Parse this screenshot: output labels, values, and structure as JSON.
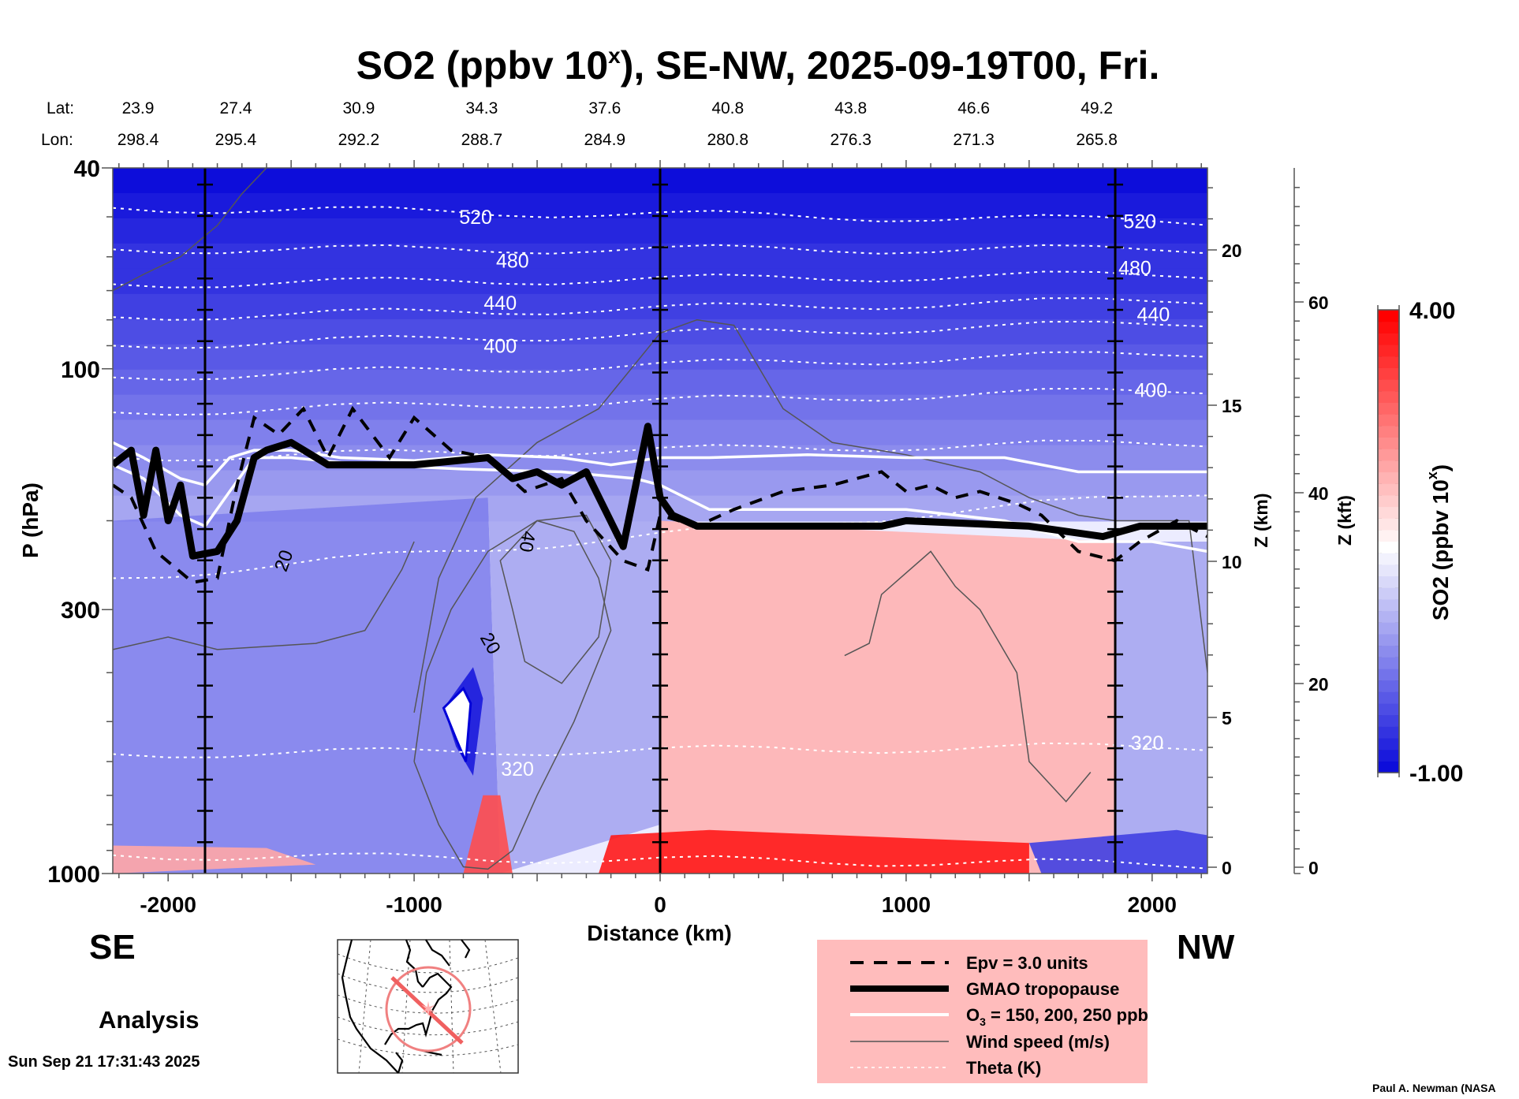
{
  "chart_data": {
    "type": "heatmap",
    "title": "SO2 (ppbv 10",
    "title_sup": "x",
    "title_rest": "), SE-NW, 2025-09-19T00, Fri.",
    "xlabel": "Distance (km)",
    "ylabel": "P (hPa)",
    "ylabel_right_km": "Z (km)",
    "ylabel_right_kft": "Z (kft)",
    "xlim": [
      -2225,
      2225
    ],
    "ylim": [
      1000,
      40
    ],
    "yscale": "log",
    "x_ticks": [
      -2000,
      -1000,
      0,
      1000,
      2000
    ],
    "x_tick_labels": [
      "-2000",
      "-1000",
      "0",
      "1000",
      "2000"
    ],
    "y_ticks": [
      40,
      100,
      300,
      1000
    ],
    "y_tick_labels": [
      "40",
      "100",
      "300",
      "1000"
    ],
    "z_km_ticks": [
      0,
      5,
      10,
      15,
      20
    ],
    "z_km_labels": [
      "0",
      "5",
      "10",
      "15",
      "20"
    ],
    "z_kft_ticks": [
      0,
      20,
      40,
      60
    ],
    "z_kft_labels": [
      "0",
      "20",
      "40",
      "60"
    ],
    "vertical_markers_km": [
      -1850,
      0,
      1850
    ],
    "lat_label": "Lat:",
    "lon_label": "Lon:",
    "position_ticks_km": [
      -2225,
      -1725,
      -1225,
      -725,
      -225,
      275,
      775,
      1275,
      1775
    ],
    "lat": [
      "23.9",
      "27.4",
      "30.9",
      "34.3",
      "37.6",
      "40.8",
      "43.8",
      "46.6",
      "49.2"
    ],
    "lon": [
      "298.4",
      "295.4",
      "292.2",
      "288.7",
      "284.9",
      "280.8",
      "276.3",
      "271.3",
      "265.8"
    ],
    "colorbar": {
      "label": "SO2 (ppbv 10",
      "label_sup": "x",
      "label_end": ")",
      "min": -1.0,
      "max": 4.0,
      "min_label": "-1.00",
      "max_label": "4.00",
      "levels": 40,
      "low_color": "#0000d8",
      "mid_color": "#ffffff",
      "high_color": "#ff0000"
    },
    "field_regions": [
      {
        "name": "upper-strat-blue",
        "value": -0.6,
        "poly": [
          [
            -2225,
            40
          ],
          [
            2225,
            40
          ],
          [
            2225,
            70
          ],
          [
            -2225,
            80
          ]
        ]
      },
      {
        "name": "strat-blue",
        "value": -0.2,
        "poly": [
          [
            -2225,
            80
          ],
          [
            2225,
            70
          ],
          [
            2225,
            110
          ],
          [
            -2225,
            130
          ]
        ]
      },
      {
        "name": "utls-pale",
        "value": 0.3,
        "poly": [
          [
            -2225,
            130
          ],
          [
            2225,
            110
          ],
          [
            2225,
            180
          ],
          [
            -2225,
            200
          ]
        ]
      },
      {
        "name": "trop-left-blue",
        "value": 0.2,
        "poly": [
          [
            -2225,
            200
          ],
          [
            -700,
            180
          ],
          [
            -650,
            1000
          ],
          [
            -2225,
            1000
          ]
        ]
      },
      {
        "name": "trop-mid-pale",
        "value": 0.6,
        "poly": [
          [
            -700,
            180
          ],
          [
            0,
            200
          ],
          [
            0,
            800
          ],
          [
            -650,
            1000
          ]
        ]
      },
      {
        "name": "trop-right-pink",
        "value": 2.2,
        "poly": [
          [
            0,
            200
          ],
          [
            1850,
            220
          ],
          [
            1850,
            1000
          ],
          [
            0,
            1000
          ]
        ]
      },
      {
        "name": "trop-far-right",
        "value": 0.6,
        "poly": [
          [
            1850,
            220
          ],
          [
            2225,
            220
          ],
          [
            2225,
            1000
          ],
          [
            1850,
            1000
          ]
        ]
      },
      {
        "name": "blue-tongue",
        "value": -0.8,
        "poly": [
          [
            -880,
            470
          ],
          [
            -760,
            390
          ],
          [
            -720,
            450
          ],
          [
            -760,
            640
          ],
          [
            -830,
            560
          ]
        ]
      },
      {
        "name": "surface-red-left",
        "value": 2.4,
        "poly": [
          [
            -2225,
            880
          ],
          [
            -1600,
            890
          ],
          [
            -1400,
            960
          ],
          [
            -2225,
            1000
          ]
        ]
      },
      {
        "name": "red-plume",
        "value": 3.2,
        "poly": [
          [
            -800,
            1000
          ],
          [
            -720,
            700
          ],
          [
            -650,
            700
          ],
          [
            -600,
            1000
          ]
        ]
      },
      {
        "name": "surface-red-mid",
        "value": 3.8,
        "poly": [
          [
            -250,
            1000
          ],
          [
            -200,
            840
          ],
          [
            200,
            820
          ],
          [
            1500,
            870
          ],
          [
            1500,
            1000
          ]
        ]
      },
      {
        "name": "surface-blue-right",
        "value": -0.4,
        "poly": [
          [
            1500,
            870
          ],
          [
            2100,
            820
          ],
          [
            2225,
            840
          ],
          [
            2225,
            1000
          ],
          [
            1550,
            1000
          ]
        ]
      }
    ],
    "series": [
      {
        "name": "GMAO tropopause",
        "style": "tropopause",
        "points": [
          [
            -2225,
            155
          ],
          [
            -2150,
            145
          ],
          [
            -2100,
            195
          ],
          [
            -2050,
            145
          ],
          [
            -2000,
            200
          ],
          [
            -1950,
            170
          ],
          [
            -1900,
            235
          ],
          [
            -1800,
            230
          ],
          [
            -1720,
            200
          ],
          [
            -1650,
            150
          ],
          [
            -1600,
            145
          ],
          [
            -1500,
            140
          ],
          [
            -1350,
            155
          ],
          [
            -1000,
            155
          ],
          [
            -700,
            150
          ],
          [
            -600,
            165
          ],
          [
            -500,
            160
          ],
          [
            -400,
            170
          ],
          [
            -300,
            160
          ],
          [
            -150,
            225
          ],
          [
            -50,
            130
          ],
          [
            0,
            180
          ],
          [
            50,
            195
          ],
          [
            150,
            205
          ],
          [
            500,
            205
          ],
          [
            900,
            205
          ],
          [
            1000,
            200
          ],
          [
            1500,
            205
          ],
          [
            1800,
            215
          ],
          [
            1950,
            205
          ],
          [
            2225,
            205
          ]
        ]
      },
      {
        "name": "Epv = 3.0 units",
        "style": "epv",
        "points": [
          [
            -2225,
            170
          ],
          [
            -2150,
            180
          ],
          [
            -2050,
            230
          ],
          [
            -1900,
            265
          ],
          [
            -1800,
            260
          ],
          [
            -1720,
            170
          ],
          [
            -1650,
            125
          ],
          [
            -1550,
            135
          ],
          [
            -1450,
            120
          ],
          [
            -1350,
            150
          ],
          [
            -1250,
            120
          ],
          [
            -1100,
            150
          ],
          [
            -1000,
            125
          ],
          [
            -850,
            145
          ],
          [
            -700,
            150
          ],
          [
            -550,
            175
          ],
          [
            -400,
            165
          ],
          [
            -300,
            200
          ],
          [
            -150,
            240
          ],
          [
            -50,
            250
          ],
          [
            0,
            195
          ],
          [
            150,
            205
          ],
          [
            300,
            190
          ],
          [
            500,
            175
          ],
          [
            700,
            170
          ],
          [
            900,
            160
          ],
          [
            1000,
            175
          ],
          [
            1100,
            170
          ],
          [
            1200,
            180
          ],
          [
            1300,
            175
          ],
          [
            1450,
            185
          ],
          [
            1550,
            195
          ],
          [
            1700,
            230
          ],
          [
            1850,
            240
          ],
          [
            1950,
            220
          ],
          [
            2100,
            200
          ],
          [
            2225,
            215
          ]
        ]
      },
      {
        "name": "O3 = 150, 200, 250 ppb",
        "style": "ozone",
        "points": [
          [
            -2225,
            140
          ],
          [
            -2100,
            150
          ],
          [
            -1950,
            165
          ],
          [
            -1850,
            170
          ],
          [
            -1750,
            150
          ],
          [
            -1650,
            145
          ],
          [
            -1500,
            145
          ],
          [
            -1300,
            150
          ],
          [
            -1000,
            152
          ],
          [
            -700,
            148
          ],
          [
            -400,
            150
          ],
          [
            -200,
            155
          ],
          [
            0,
            150
          ],
          [
            200,
            150
          ],
          [
            600,
            148
          ],
          [
            1000,
            150
          ],
          [
            1400,
            150
          ],
          [
            1700,
            160
          ],
          [
            2225,
            160
          ]
        ]
      },
      {
        "name": "O3 = 150, 200, 250 ppb (2)",
        "style": "ozone",
        "points": [
          [
            -2225,
            155
          ],
          [
            -2100,
            165
          ],
          [
            -1950,
            195
          ],
          [
            -1850,
            205
          ],
          [
            -1750,
            175
          ],
          [
            -1650,
            150
          ],
          [
            -1500,
            150
          ],
          [
            -1200,
            155
          ],
          [
            -800,
            158
          ],
          [
            -400,
            160
          ],
          [
            -100,
            165
          ],
          [
            0,
            170
          ],
          [
            200,
            190
          ],
          [
            600,
            190
          ],
          [
            1000,
            190
          ],
          [
            1400,
            200
          ],
          [
            1700,
            220
          ],
          [
            2000,
            220
          ],
          [
            2225,
            230
          ]
        ]
      },
      {
        "name": "Wind speed (m/s)",
        "style": "wind",
        "points": [
          [
            -2225,
            70
          ],
          [
            -2100,
            65
          ],
          [
            -1950,
            60
          ],
          [
            -1800,
            52
          ],
          [
            -1700,
            45
          ],
          [
            -1600,
            40
          ]
        ]
      },
      {
        "name": "Wind speed (m/s) jet",
        "style": "wind",
        "points": [
          [
            -1000,
            480
          ],
          [
            -900,
            260
          ],
          [
            -750,
            180
          ],
          [
            -500,
            140
          ],
          [
            -250,
            120
          ],
          [
            0,
            85
          ],
          [
            150,
            80
          ],
          [
            300,
            82
          ],
          [
            500,
            120
          ],
          [
            700,
            140
          ],
          [
            1000,
            148
          ],
          [
            1300,
            160
          ],
          [
            1500,
            180
          ],
          [
            1700,
            195
          ],
          [
            1850,
            200
          ],
          [
            2150,
            200
          ],
          [
            2225,
            400
          ]
        ]
      },
      {
        "name": "Wind speed 40 contour",
        "style": "wind",
        "points": [
          [
            -600,
            300
          ],
          [
            -650,
            240
          ],
          [
            -500,
            200
          ],
          [
            -300,
            195
          ],
          [
            -200,
            240
          ],
          [
            -250,
            340
          ],
          [
            -400,
            420
          ],
          [
            -550,
            380
          ],
          [
            -600,
            300
          ]
        ]
      },
      {
        "name": "Wind speed 20 contour",
        "style": "wind",
        "points": [
          [
            -1000,
            600
          ],
          [
            -950,
            400
          ],
          [
            -850,
            300
          ],
          [
            -700,
            230
          ],
          [
            -500,
            200
          ],
          [
            -350,
            210
          ],
          [
            -250,
            260
          ],
          [
            -200,
            330
          ],
          [
            -350,
            500
          ],
          [
            -500,
            700
          ],
          [
            -600,
            900
          ],
          [
            -700,
            980
          ],
          [
            -800,
            970
          ],
          [
            -900,
            800
          ],
          [
            -1000,
            600
          ]
        ]
      },
      {
        "name": "Wind speed lower-left",
        "style": "wind",
        "points": [
          [
            -2225,
            360
          ],
          [
            -2000,
            340
          ],
          [
            -1800,
            360
          ],
          [
            -1600,
            355
          ],
          [
            -1400,
            350
          ],
          [
            -1200,
            330
          ],
          [
            -1050,
            250
          ],
          [
            -1000,
            220
          ]
        ]
      },
      {
        "name": "Wind speed right",
        "style": "wind",
        "points": [
          [
            750,
            370
          ],
          [
            850,
            350
          ],
          [
            900,
            280
          ],
          [
            1100,
            230
          ],
          [
            1200,
            270
          ],
          [
            1300,
            300
          ],
          [
            1450,
            400
          ],
          [
            1500,
            600
          ],
          [
            1650,
            720
          ],
          [
            1750,
            630
          ]
        ]
      }
    ],
    "theta_labels": [
      {
        "text": "520",
        "x": -750,
        "p": 50
      },
      {
        "text": "480",
        "x": -600,
        "p": 61
      },
      {
        "text": "440",
        "x": -650,
        "p": 74
      },
      {
        "text": "400",
        "x": -650,
        "p": 90
      },
      {
        "text": "320",
        "x": -580,
        "p": 620
      },
      {
        "text": "520",
        "x": 1950,
        "p": 51
      },
      {
        "text": "480",
        "x": 1930,
        "p": 63
      },
      {
        "text": "440",
        "x": 2005,
        "p": 78
      },
      {
        "text": "400",
        "x": 1995,
        "p": 110
      },
      {
        "text": "320",
        "x": 1980,
        "p": 550
      }
    ],
    "theta_levels_p_left": [
      48,
      58,
      68,
      79,
      90,
      104,
      122,
      150,
      260,
      580,
      920
    ],
    "theta_levels_p_right": [
      51,
      58,
      65,
      73,
      81,
      93,
      110,
      140,
      175,
      560,
      960
    ],
    "wind_labels": [
      {
        "text": "20",
        "x": -1530,
        "p": 240,
        "rot": -70
      },
      {
        "text": "40",
        "x": -540,
        "p": 220,
        "rot": 100
      },
      {
        "text": "20",
        "x": -690,
        "p": 350,
        "rot": 60
      }
    ]
  },
  "direction_left": "SE",
  "direction_right": "NW",
  "analysis_label": "Analysis",
  "timestamp": "Sun Sep 21 17:31:43 2025",
  "credit": "Paul A. Newman (NASA",
  "legend": {
    "items": [
      {
        "label": "Epv = 3.0 units",
        "style": "epv"
      },
      {
        "label": "GMAO tropopause",
        "style": "tropopause"
      },
      {
        "label_pre": "O",
        "label_sub": "3",
        "label_post": " = 150, 200, 250 ppb",
        "style": "ozone"
      },
      {
        "label": "Wind speed (m/s)",
        "style": "wind"
      },
      {
        "label": "Theta (K)",
        "style": "theta"
      }
    ],
    "background": "#ffbcbc"
  },
  "map_inset": {
    "name": "North America locator map",
    "circle_color": "#f08080",
    "section_color": "#f06060"
  }
}
